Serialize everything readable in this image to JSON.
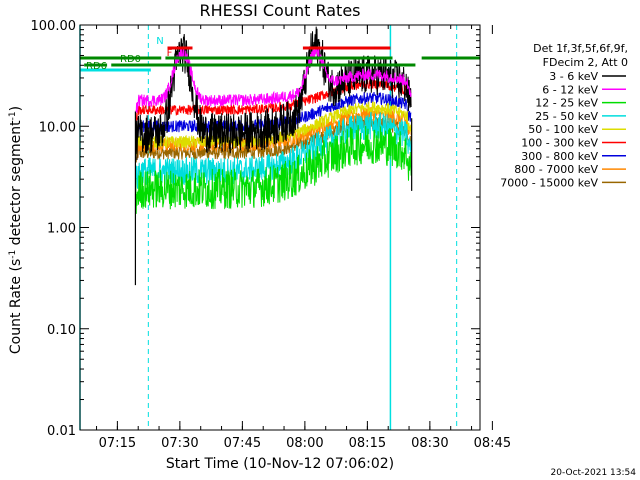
{
  "chart_data": {
    "type": "line",
    "title": "RHESSI Count Rates",
    "xlabel": "Start Time (10-Nov-12 07:06:02)",
    "ylabel_main": "Count Rate (s",
    "ylabel_sup1": "-1",
    "ylabel_mid": " detector segment",
    "ylabel_sup2": "-1",
    "ylabel_end": ")",
    "y_scale": "log",
    "ylim": [
      0.01,
      100
    ],
    "xlim_minutes": [
      0,
      96
    ],
    "x_tick_labels": [
      "07:15",
      "07:30",
      "07:45",
      "08:00",
      "08:15",
      "08:30",
      "08:45"
    ],
    "x_tick_minutes": [
      8.97,
      23.97,
      38.97,
      53.97,
      68.97,
      83.97,
      98.97
    ],
    "y_tick_labels": [
      "0.01",
      "0.10",
      "1.00",
      "10.00",
      "100.00"
    ],
    "y_tick_values": [
      0.01,
      0.1,
      1,
      10,
      100
    ],
    "legend_header": [
      "Det 1f,3f,5f,6f,9f,",
      "FDecim 2, Att 0"
    ],
    "legend_position": "right",
    "series": [
      {
        "name": "3 - 6 keV",
        "color": "#000000",
        "base": 8.5,
        "noise": 0.2
      },
      {
        "name": "6 - 12 keV",
        "color": "#ff00ff",
        "base": 18,
        "noise": 0.06
      },
      {
        "name": "12 - 25 keV",
        "color": "#00dd00",
        "base": 2.4,
        "noise": 0.2
      },
      {
        "name": "25 - 50 keV",
        "color": "#00dddd",
        "base": 3.6,
        "noise": 0.14
      },
      {
        "name": "50 - 100 keV",
        "color": "#dddd00",
        "base": 7.0,
        "noise": 0.06
      },
      {
        "name": "100 - 300 keV",
        "color": "#ff0000",
        "base": 14.5,
        "noise": 0.05
      },
      {
        "name": "300 - 800 keV",
        "color": "#0000dd",
        "base": 10.0,
        "noise": 0.06
      },
      {
        "name": "800 - 7000 keV",
        "color": "#ff8800",
        "base": 6.6,
        "noise": 0.07
      },
      {
        "name": "7000 - 15000 keV",
        "color": "#996600",
        "base": 5.5,
        "noise": 0.07
      }
    ],
    "flags": [
      {
        "label": "N",
        "color": "#00e0e0",
        "segments": [
          [
            0,
            17,
            70
          ]
        ]
      },
      {
        "label": "F",
        "color": "#ee0000",
        "segments": [
          [
            21,
            27,
            48
          ],
          [
            53.5,
            74.5,
            48
          ]
        ]
      },
      {
        "label": "RD0",
        "color": "#008800",
        "segments": [
          [
            0,
            19.5,
            58
          ],
          [
            20.5,
            75,
            58
          ],
          [
            82,
            96,
            58
          ]
        ]
      },
      {
        "label": "RD6",
        "color": "#008800",
        "segments": [
          [
            1,
            6.5,
            65
          ],
          [
            7.5,
            80.5,
            65
          ]
        ]
      }
    ],
    "night_lines_minutes": [
      0,
      74.5
    ],
    "saa_dashed_minutes": [
      16.4,
      90.4
    ],
    "timestamp": "20-Oct-2021 13:54"
  }
}
